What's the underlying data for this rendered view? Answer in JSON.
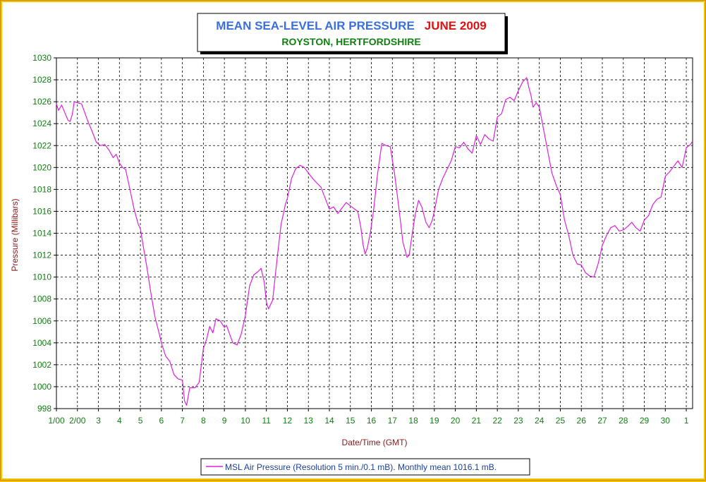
{
  "chart_data": {
    "type": "line",
    "title_main": "MEAN SEA-LEVEL AIR PRESSURE",
    "title_period": "JUNE 2009",
    "subtitle": "ROYSTON, HERTFORDSHIRE",
    "xlabel": "Date/Time (GMT)",
    "ylabel": "Pressure (Millibars)",
    "ylim": [
      998,
      1030
    ],
    "yticks": [
      998,
      1000,
      1002,
      1004,
      1006,
      1008,
      1010,
      1012,
      1014,
      1016,
      1018,
      1020,
      1022,
      1024,
      1026,
      1028,
      1030
    ],
    "xlim": [
      1,
      31.3
    ],
    "xtick_labels": [
      "1/00",
      "2/00",
      "3",
      "4",
      "5",
      "6",
      "7",
      "8",
      "9",
      "10",
      "11",
      "12",
      "13",
      "14",
      "15",
      "16",
      "17",
      "18",
      "19",
      "20",
      "21",
      "22",
      "23",
      "24",
      "25",
      "26",
      "27",
      "28",
      "29",
      "30",
      "1"
    ],
    "grid": true,
    "legend_position": "bottom-center",
    "colors": {
      "line": "#e020e0",
      "title_main": "#3a6fe0",
      "title_period": "#e01010",
      "subtitle": "#108010",
      "axis_tick": "#108010",
      "axis_label": "#8b1a1a",
      "outer_border": "#f2c200"
    },
    "series": [
      {
        "name": "MSL Air Pressure (Resolution 5 min./0.1 mB). Monthly mean 1016.1 mB.",
        "points": [
          [
            1.0,
            1025.8
          ],
          [
            1.1,
            1025.2
          ],
          [
            1.25,
            1025.7
          ],
          [
            1.4,
            1025.0
          ],
          [
            1.55,
            1024.3
          ],
          [
            1.65,
            1024.2
          ],
          [
            1.75,
            1024.8
          ],
          [
            1.85,
            1026.0
          ],
          [
            2.0,
            1025.9
          ],
          [
            2.2,
            1025.8
          ],
          [
            2.35,
            1025.0
          ],
          [
            2.5,
            1024.2
          ],
          [
            2.7,
            1023.3
          ],
          [
            2.9,
            1022.3
          ],
          [
            3.1,
            1022.0
          ],
          [
            3.3,
            1022.1
          ],
          [
            3.5,
            1021.6
          ],
          [
            3.7,
            1020.9
          ],
          [
            3.85,
            1021.2
          ],
          [
            4.0,
            1020.4
          ],
          [
            4.15,
            1020.0
          ],
          [
            4.3,
            1019.8
          ],
          [
            4.5,
            1018.0
          ],
          [
            4.7,
            1016.2
          ],
          [
            4.9,
            1014.8
          ],
          [
            5.0,
            1014.4
          ],
          [
            5.1,
            1013.2
          ],
          [
            5.3,
            1011.0
          ],
          [
            5.5,
            1008.5
          ],
          [
            5.7,
            1006.3
          ],
          [
            5.9,
            1004.8
          ],
          [
            6.0,
            1004.0
          ],
          [
            6.2,
            1002.8
          ],
          [
            6.4,
            1002.3
          ],
          [
            6.6,
            1001.1
          ],
          [
            6.8,
            1000.7
          ],
          [
            7.0,
            1000.6
          ],
          [
            7.1,
            998.7
          ],
          [
            7.2,
            998.3
          ],
          [
            7.35,
            999.9
          ],
          [
            7.6,
            999.9
          ],
          [
            7.8,
            1000.4
          ],
          [
            8.0,
            1003.5
          ],
          [
            8.15,
            1004.3
          ],
          [
            8.3,
            1005.5
          ],
          [
            8.45,
            1004.9
          ],
          [
            8.6,
            1006.2
          ],
          [
            8.8,
            1006.0
          ],
          [
            9.0,
            1005.4
          ],
          [
            9.1,
            1005.6
          ],
          [
            9.25,
            1004.8
          ],
          [
            9.4,
            1004.0
          ],
          [
            9.6,
            1003.8
          ],
          [
            9.8,
            1004.8
          ],
          [
            10.0,
            1006.5
          ],
          [
            10.2,
            1009.2
          ],
          [
            10.4,
            1010.2
          ],
          [
            10.6,
            1010.5
          ],
          [
            10.75,
            1010.8
          ],
          [
            10.9,
            1009.5
          ],
          [
            11.0,
            1007.7
          ],
          [
            11.1,
            1007.1
          ],
          [
            11.3,
            1007.9
          ],
          [
            11.5,
            1011.5
          ],
          [
            11.7,
            1014.8
          ],
          [
            11.9,
            1016.6
          ],
          [
            12.0,
            1017.2
          ],
          [
            12.2,
            1019.0
          ],
          [
            12.4,
            1019.9
          ],
          [
            12.6,
            1020.2
          ],
          [
            12.8,
            1020.0
          ],
          [
            13.0,
            1019.5
          ],
          [
            13.2,
            1019.0
          ],
          [
            13.4,
            1018.6
          ],
          [
            13.6,
            1018.2
          ],
          [
            13.8,
            1017.2
          ],
          [
            14.0,
            1016.2
          ],
          [
            14.2,
            1016.4
          ],
          [
            14.4,
            1015.8
          ],
          [
            14.6,
            1016.3
          ],
          [
            14.8,
            1016.8
          ],
          [
            15.0,
            1016.5
          ],
          [
            15.2,
            1016.2
          ],
          [
            15.35,
            1016.0
          ],
          [
            15.5,
            1014.5
          ],
          [
            15.6,
            1013.0
          ],
          [
            15.7,
            1012.1
          ],
          [
            15.8,
            1012.6
          ],
          [
            15.95,
            1014.0
          ],
          [
            16.1,
            1016.0
          ],
          [
            16.3,
            1019.5
          ],
          [
            16.5,
            1022.2
          ],
          [
            16.7,
            1022.0
          ],
          [
            16.9,
            1021.9
          ],
          [
            17.1,
            1019.5
          ],
          [
            17.3,
            1016.5
          ],
          [
            17.5,
            1013.2
          ],
          [
            17.7,
            1011.8
          ],
          [
            17.8,
            1012.0
          ],
          [
            17.95,
            1014.0
          ],
          [
            18.1,
            1015.8
          ],
          [
            18.25,
            1017.0
          ],
          [
            18.4,
            1016.4
          ],
          [
            18.6,
            1015.0
          ],
          [
            18.75,
            1014.5
          ],
          [
            18.9,
            1015.2
          ],
          [
            19.0,
            1016.0
          ],
          [
            19.2,
            1018.0
          ],
          [
            19.4,
            1019.0
          ],
          [
            19.6,
            1019.8
          ],
          [
            19.8,
            1020.6
          ],
          [
            20.0,
            1021.9
          ],
          [
            20.2,
            1021.8
          ],
          [
            20.4,
            1022.3
          ],
          [
            20.6,
            1021.7
          ],
          [
            20.8,
            1021.3
          ],
          [
            21.0,
            1022.9
          ],
          [
            21.2,
            1022.1
          ],
          [
            21.4,
            1023.0
          ],
          [
            21.6,
            1022.6
          ],
          [
            21.8,
            1022.4
          ],
          [
            22.0,
            1024.6
          ],
          [
            22.2,
            1024.9
          ],
          [
            22.4,
            1026.2
          ],
          [
            22.6,
            1026.4
          ],
          [
            22.8,
            1026.1
          ],
          [
            23.0,
            1027.0
          ],
          [
            23.2,
            1027.8
          ],
          [
            23.4,
            1028.2
          ],
          [
            23.5,
            1027.3
          ],
          [
            23.6,
            1026.6
          ],
          [
            23.7,
            1025.5
          ],
          [
            23.85,
            1025.9
          ],
          [
            24.0,
            1025.5
          ],
          [
            24.2,
            1023.5
          ],
          [
            24.4,
            1021.5
          ],
          [
            24.6,
            1019.5
          ],
          [
            24.8,
            1018.4
          ],
          [
            25.0,
            1017.5
          ],
          [
            25.2,
            1015.2
          ],
          [
            25.4,
            1013.8
          ],
          [
            25.6,
            1012.0
          ],
          [
            25.8,
            1011.2
          ],
          [
            26.0,
            1011.1
          ],
          [
            26.2,
            1010.4
          ],
          [
            26.4,
            1010.1
          ],
          [
            26.6,
            1010.0
          ],
          [
            26.8,
            1011.2
          ],
          [
            27.0,
            1012.9
          ],
          [
            27.2,
            1013.8
          ],
          [
            27.4,
            1014.5
          ],
          [
            27.6,
            1014.7
          ],
          [
            27.8,
            1014.2
          ],
          [
            28.0,
            1014.3
          ],
          [
            28.2,
            1014.6
          ],
          [
            28.4,
            1015.0
          ],
          [
            28.6,
            1014.5
          ],
          [
            28.8,
            1014.2
          ],
          [
            29.0,
            1015.2
          ],
          [
            29.2,
            1015.6
          ],
          [
            29.4,
            1016.6
          ],
          [
            29.6,
            1017.1
          ],
          [
            29.8,
            1017.3
          ],
          [
            30.0,
            1019.2
          ],
          [
            30.2,
            1019.6
          ],
          [
            30.4,
            1020.1
          ],
          [
            30.6,
            1020.6
          ],
          [
            30.8,
            1020.0
          ],
          [
            31.0,
            1021.8
          ],
          [
            31.2,
            1022.1
          ],
          [
            31.3,
            1022.4
          ]
        ]
      }
    ]
  }
}
